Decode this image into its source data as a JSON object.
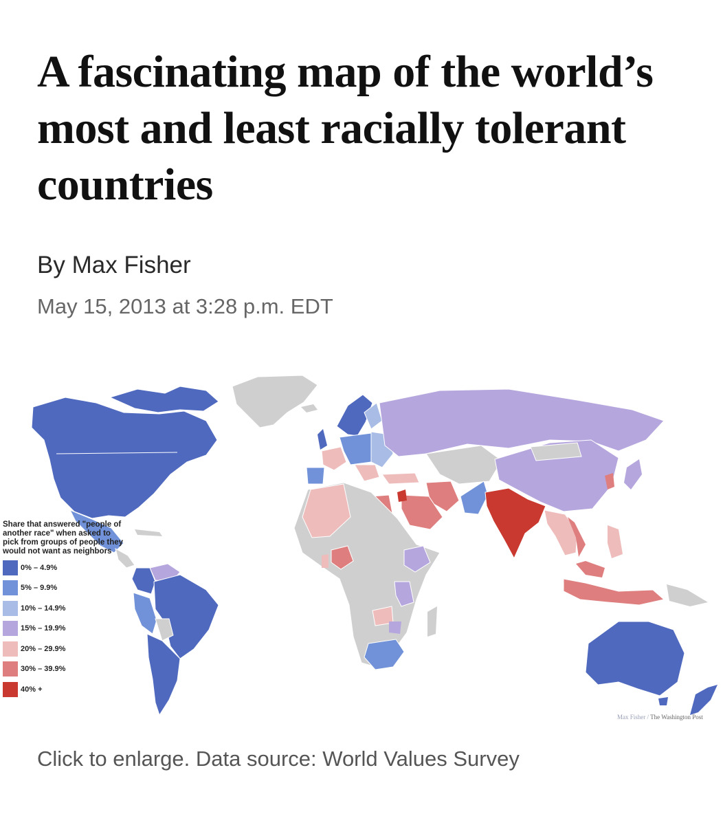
{
  "article": {
    "headline": "A fascinating map of the world’s most and least racially tolerant countries",
    "byline": "By Max Fisher",
    "date": "May 15, 2013 at 3:28 p.m. EDT",
    "caption": "Click to enlarge. Data source: World Values Survey"
  },
  "map": {
    "legend_title": "Share that answered \"people of another race\" when asked to pick from groups of people they would not want as neighbors",
    "legend": [
      {
        "label": "0% – 4.9%",
        "color": "#4f69bf"
      },
      {
        "label": "5% – 9.9%",
        "color": "#7192d8"
      },
      {
        "label": "10% – 14.9%",
        "color": "#a8bce6"
      },
      {
        "label": "15% – 19.9%",
        "color": "#b6a6de"
      },
      {
        "label": "20% – 29.9%",
        "color": "#efbcbc"
      },
      {
        "label": "30% – 39.9%",
        "color": "#df7e7e"
      },
      {
        "label": "40% +",
        "color": "#c9392f"
      }
    ],
    "no_data_color": "#cfcfcf",
    "credit_author": "Max Fisher",
    "credit_separator": "/",
    "credit_publisher": "The Washington Post"
  }
}
